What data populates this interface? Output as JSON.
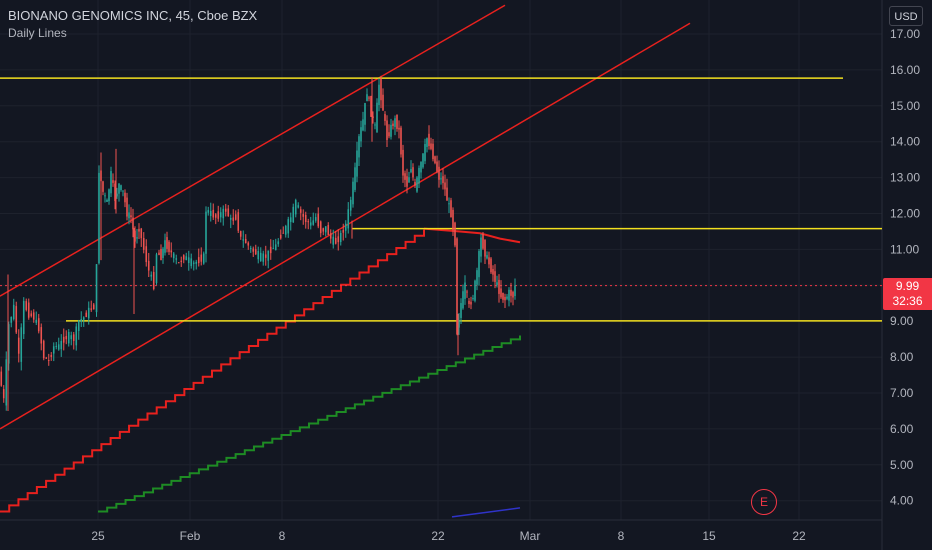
{
  "header": {
    "title": "BIONANO GENOMICS INC, 45, Cboe BZX",
    "subtitle": "Daily Lines"
  },
  "currency_button": "USD",
  "price_label": {
    "price": "9.99",
    "countdown": "32:36"
  },
  "earnings_marker": "E",
  "colors": {
    "background": "#131722",
    "grid": "#1e222d",
    "up": "#26a69a",
    "down": "#ef5350",
    "channel": "#e8211e",
    "horizontal": "#f2e01f",
    "red_step": "#e8211e",
    "green_step": "#1e8c24",
    "blue_line": "#2f33c9"
  },
  "chart_data": {
    "type": "candlestick",
    "y_axis": {
      "range": [
        3.5,
        17.6
      ],
      "ticks": [
        "17.00",
        "16.00",
        "15.00",
        "14.00",
        "13.00",
        "12.00",
        "11.00",
        "10.00",
        "9.00",
        "8.00",
        "7.00",
        "6.00",
        "5.00",
        "4.00"
      ]
    },
    "x_axis": {
      "tick_labels": [
        "25",
        "Feb",
        "8",
        "22",
        "Mar",
        "8",
        "15",
        "22"
      ]
    },
    "horizontal_lines": [
      15.77,
      11.58,
      9.01
    ],
    "current_price": 9.99,
    "trend_channel": {
      "upper": {
        "start": [
          0,
          9.7
        ],
        "end": [
          505,
          17.8
        ]
      },
      "lower": {
        "start": [
          0,
          6.0
        ],
        "end": [
          690,
          17.3
        ]
      }
    },
    "candle_path": [
      [
        0,
        7.6
      ],
      [
        5,
        6.8
      ],
      [
        10,
        8.9
      ],
      [
        15,
        9.4
      ],
      [
        20,
        8.0
      ],
      [
        25,
        9.5
      ],
      [
        30,
        9.2
      ],
      [
        35,
        9.1
      ],
      [
        40,
        8.8
      ],
      [
        45,
        8.0
      ],
      [
        50,
        7.9
      ],
      [
        55,
        8.3
      ],
      [
        60,
        8.3
      ],
      [
        65,
        8.5
      ],
      [
        70,
        8.6
      ],
      [
        75,
        8.5
      ],
      [
        80,
        9.0
      ],
      [
        85,
        9.1
      ],
      [
        90,
        9.3
      ],
      [
        95,
        9.4
      ],
      [
        98,
        10.5
      ],
      [
        100,
        13.2
      ],
      [
        104,
        12.6
      ],
      [
        108,
        12.3
      ],
      [
        112,
        13.1
      ],
      [
        116,
        12.4
      ],
      [
        120,
        12.8
      ],
      [
        124,
        12.6
      ],
      [
        128,
        12.0
      ],
      [
        132,
        11.9
      ],
      [
        136,
        11.2
      ],
      [
        140,
        11.6
      ],
      [
        145,
        11.0
      ],
      [
        150,
        10.4
      ],
      [
        155,
        10.0
      ],
      [
        158,
        10.9
      ],
      [
        162,
        10.8
      ],
      [
        166,
        11.2
      ],
      [
        170,
        11.0
      ],
      [
        175,
        10.8
      ],
      [
        180,
        10.6
      ],
      [
        185,
        10.8
      ],
      [
        190,
        10.7
      ],
      [
        195,
        10.6
      ],
      [
        200,
        10.7
      ],
      [
        205,
        10.8
      ],
      [
        207,
        12.1
      ],
      [
        212,
        12.0
      ],
      [
        217,
        11.9
      ],
      [
        222,
        12.0
      ],
      [
        227,
        12.1
      ],
      [
        232,
        11.8
      ],
      [
        237,
        11.9
      ],
      [
        242,
        11.3
      ],
      [
        247,
        11.2
      ],
      [
        252,
        11.0
      ],
      [
        257,
        10.9
      ],
      [
        262,
        10.8
      ],
      [
        267,
        10.8
      ],
      [
        272,
        11.0
      ],
      [
        277,
        11.1
      ],
      [
        282,
        11.4
      ],
      [
        287,
        11.6
      ],
      [
        292,
        11.9
      ],
      [
        297,
        12.3
      ],
      [
        302,
        12.0
      ],
      [
        307,
        11.8
      ],
      [
        312,
        11.7
      ],
      [
        317,
        11.9
      ],
      [
        322,
        11.5
      ],
      [
        327,
        11.6
      ],
      [
        332,
        11.3
      ],
      [
        337,
        11.2
      ],
      [
        342,
        11.4
      ],
      [
        347,
        11.7
      ],
      [
        352,
        12.4
      ],
      [
        356,
        13.2
      ],
      [
        360,
        14.1
      ],
      [
        364,
        14.6
      ],
      [
        368,
        15.4
      ],
      [
        372,
        14.8
      ],
      [
        376,
        14.4
      ],
      [
        380,
        15.6
      ],
      [
        384,
        14.9
      ],
      [
        388,
        14.1
      ],
      [
        392,
        14.4
      ],
      [
        396,
        14.6
      ],
      [
        400,
        14.3
      ],
      [
        404,
        13.1
      ],
      [
        408,
        12.8
      ],
      [
        412,
        13.3
      ],
      [
        416,
        12.7
      ],
      [
        420,
        13.2
      ],
      [
        424,
        13.6
      ],
      [
        428,
        14.1
      ],
      [
        432,
        13.8
      ],
      [
        436,
        13.4
      ],
      [
        440,
        13.0
      ],
      [
        444,
        12.9
      ],
      [
        448,
        12.4
      ],
      [
        452,
        12.0
      ],
      [
        456,
        11.2
      ],
      [
        458,
        8.7
      ],
      [
        462,
        9.5
      ],
      [
        466,
        10.0
      ],
      [
        470,
        9.4
      ],
      [
        474,
        9.7
      ],
      [
        478,
        10.4
      ],
      [
        482,
        11.3
      ],
      [
        486,
        10.9
      ],
      [
        490,
        10.6
      ],
      [
        494,
        10.3
      ],
      [
        498,
        10.0
      ],
      [
        502,
        9.7
      ],
      [
        506,
        9.6
      ],
      [
        510,
        9.8
      ],
      [
        514,
        9.7
      ],
      [
        516,
        9.99
      ]
    ],
    "red_step_line": {
      "start": [
        0,
        3.7
      ],
      "end": [
        424,
        11.55
      ],
      "tail": [
        [
          424,
          11.58
        ],
        [
          460,
          11.5
        ],
        [
          480,
          11.45
        ],
        [
          500,
          11.3
        ],
        [
          520,
          11.2
        ]
      ]
    },
    "green_step_line": {
      "start": [
        98,
        3.7
      ],
      "end": [
        520,
        8.6
      ]
    },
    "blue_line": {
      "start": [
        452,
        3.55
      ],
      "end": [
        520,
        3.8
      ]
    }
  }
}
